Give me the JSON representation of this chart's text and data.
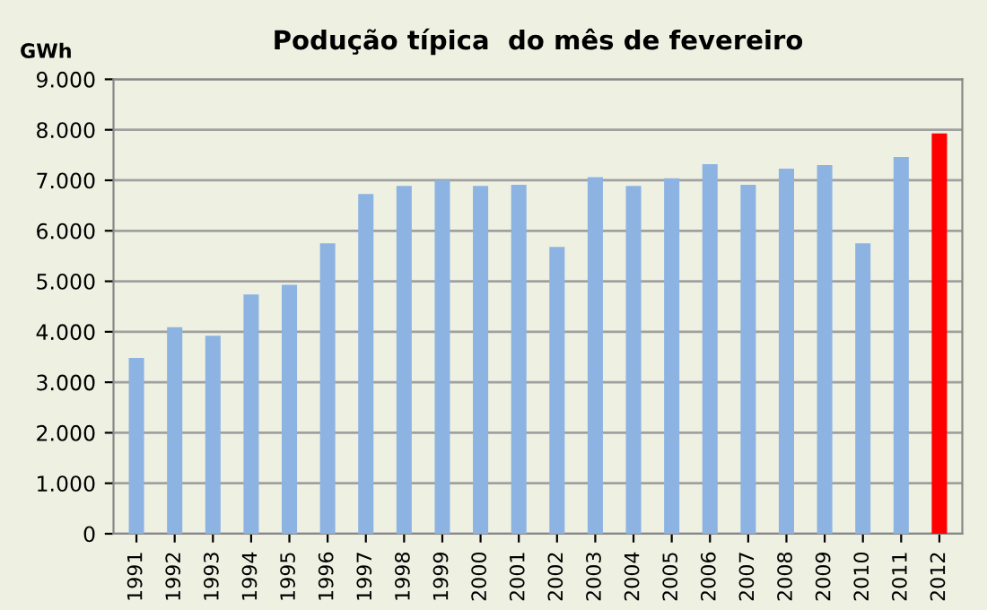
{
  "chart_data": {
    "type": "bar",
    "title": "Podução típica  do mês de fevereiro",
    "ylabel": "GWh",
    "categories": [
      "1991",
      "1992",
      "1993",
      "1994",
      "1995",
      "1996",
      "1997",
      "1998",
      "1999",
      "2000",
      "2001",
      "2002",
      "2003",
      "2004",
      "2005",
      "2006",
      "2007",
      "2008",
      "2009",
      "2010",
      "2011",
      "2012"
    ],
    "values": [
      3480,
      4090,
      3920,
      4740,
      4930,
      5750,
      6730,
      6890,
      7000,
      6890,
      6910,
      5680,
      7060,
      6890,
      7040,
      7320,
      6910,
      7230,
      7300,
      5750,
      7460,
      7930
    ],
    "colors": [
      "#8db3e2",
      "#8db3e2",
      "#8db3e2",
      "#8db3e2",
      "#8db3e2",
      "#8db3e2",
      "#8db3e2",
      "#8db3e2",
      "#8db3e2",
      "#8db3e2",
      "#8db3e2",
      "#8db3e2",
      "#8db3e2",
      "#8db3e2",
      "#8db3e2",
      "#8db3e2",
      "#8db3e2",
      "#8db3e2",
      "#8db3e2",
      "#8db3e2",
      "#8db3e2",
      "#ff0000"
    ],
    "ylim": [
      0,
      9000
    ],
    "yticks": [
      {
        "value": 0,
        "label": "0"
      },
      {
        "value": 1000,
        "label": "1.000"
      },
      {
        "value": 2000,
        "label": "2.000"
      },
      {
        "value": 3000,
        "label": "3.000"
      },
      {
        "value": 4000,
        "label": "4.000"
      },
      {
        "value": 5000,
        "label": "5.000"
      },
      {
        "value": 6000,
        "label": "6.000"
      },
      {
        "value": 7000,
        "label": "7.000"
      },
      {
        "value": 8000,
        "label": "8.000"
      },
      {
        "value": 9000,
        "label": "9.000"
      }
    ],
    "grid": "y",
    "legend": false
  }
}
